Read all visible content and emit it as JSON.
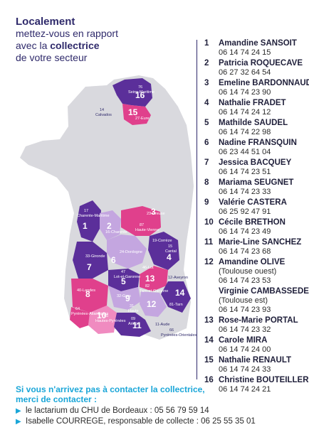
{
  "intro": {
    "line1": "Localement",
    "line2": "mettez-vous en rapport",
    "line3_pre": "avec la ",
    "line3_bold": "collectrice",
    "line4": "de votre secteur"
  },
  "map_labels": {
    "n1": "1",
    "n2": "2",
    "n3": "3",
    "n4": "4",
    "n5": "5",
    "n6": "6",
    "n7": "7",
    "n8": "8",
    "n9": "9",
    "n10": "10",
    "n11": "11",
    "n12": "12",
    "n13": "13",
    "n14": "14",
    "n15": "15",
    "n16": "16",
    "d76": "76",
    "d76n": "Seine-Maritime",
    "d27": "27-Eure",
    "d14": "14",
    "d14n": "Calvados",
    "d17": "17",
    "d17n": "Charente-Maritime",
    "d16": "16-Charente",
    "d87": "87",
    "d87n": "Haute-Vienne",
    "d23": "23-Creuse",
    "d19": "19-Corrèze",
    "d15": "15",
    "d15n": "Cantal",
    "d24": "24-Dordogne",
    "d33": "33-Gironde",
    "d47": "47",
    "d47n": "Lot-et-Garonne",
    "d46": "46-Lot",
    "d12": "12-Aveyron",
    "d40": "40-Landes",
    "d82": "82",
    "d82n": "Tarn-et-Garonne",
    "d81": "81-Tarn",
    "d32": "32-Gers",
    "d64": "64",
    "d64n": "Pyrénées-Atlantiques",
    "d65": "65",
    "d65n": "Hautes-Pyrénées",
    "d31": "31",
    "d31n": "Haute",
    "d09": "09",
    "d09n": "Ariège",
    "d11": "11-Aude",
    "d66": "66",
    "d66n": "Pyrénées-Orientales"
  },
  "contacts": [
    {
      "num": "1",
      "name": "Amandine SANSOIT",
      "phone": "06 14 74 24 15"
    },
    {
      "num": "2",
      "name": "Patricia ROQUECAVE",
      "phone": "06 27 32 64 54"
    },
    {
      "num": "3",
      "name": "Emeline BARDONNAUD",
      "phone": "06 14 74 23 90"
    },
    {
      "num": "4",
      "name": "Nathalie FRADET",
      "phone": "06 14 74 24 12"
    },
    {
      "num": "5",
      "name": "Mathilde SAUDEL",
      "phone": "06 14 74 22 98"
    },
    {
      "num": "6",
      "name": "Nadine FRANSQUIN",
      "phone": "06 23 44 51 04"
    },
    {
      "num": "7",
      "name": "Jessica BACQUEY",
      "phone": "06 14 74 23 51"
    },
    {
      "num": "8",
      "name": "Mariama SEUGNET",
      "phone": "06 14 74 23 33"
    },
    {
      "num": "9",
      "name": "Valérie CASTERA",
      "phone": "06 25 92 47 91"
    },
    {
      "num": "10",
      "name": "Cécile BRETHON",
      "phone": "06 14 74 23 49"
    },
    {
      "num": "11",
      "name": "Marie-Line SANCHEZ",
      "phone": "06 14 74 23 68"
    },
    {
      "num": "12",
      "name": "Amandine OLIVE",
      "note": "(Toulouse ouest)",
      "phone": "06 14 74 23 53"
    },
    {
      "num": "",
      "name": "Virginie CAMBASSEDES",
      "note": "(Toulouse est)",
      "phone": "06 14 74 23 93"
    },
    {
      "num": "13",
      "name": "Rose-Marie PORTAL",
      "phone": "06 14 74 23 32"
    },
    {
      "num": "14",
      "name": "Carole MIRA",
      "phone": "06 14 74 24 00"
    },
    {
      "num": "15",
      "name": "Nathalie RENAULT",
      "phone": "06 14 74 24 33"
    },
    {
      "num": "16",
      "name": "Christine BOUTEILLER",
      "phone": "06 14 74 24 21"
    }
  ],
  "footer": {
    "title1": "Si vous n'arrivez pas à contacter la collectrice,",
    "title2": "merci de contacter :",
    "line1": "le lactarium du CHU de Bordeaux : 05 56 79 59 14",
    "line2": "Isabelle COURREGE, responsable de collecte : 06 25 55 35 01"
  },
  "colors": {
    "navy": "#2f2a6b",
    "purple": "#5b2f9a",
    "magenta": "#e0408c",
    "pink": "#f08bc0",
    "lavender": "#c4a6e0",
    "grey": "#d9d9de",
    "cyan": "#1aa6d8"
  }
}
